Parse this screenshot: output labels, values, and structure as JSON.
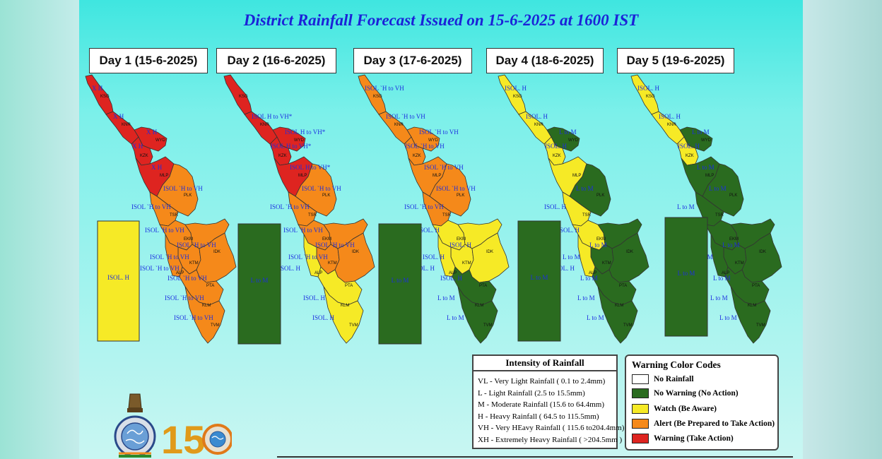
{
  "title": "District Rainfall Forecast Issued on  15-6-2025 at 1600 IST",
  "days": [
    {
      "label": "Day 1 (15-6-2025)",
      "rect_color": "#f6ea26",
      "rect_label": "ISOL. H"
    },
    {
      "label": "Day 2 (16-6-2025)",
      "rect_color": "#2a6b1f",
      "rect_label": "L to M"
    },
    {
      "label": "Day 3 (17-6-2025)",
      "rect_color": "#2a6b1f",
      "rect_label": "L to M"
    },
    {
      "label": "Day 4 (18-6-2025)",
      "rect_color": "#2a6b1f",
      "rect_label": "L to M"
    },
    {
      "label": "Day 5 (19-6-2025)",
      "rect_color": "#2a6b1f",
      "rect_label": "L to M"
    }
  ],
  "districts": [
    "KSG",
    "KNR",
    "WYD",
    "KZK",
    "MLP",
    "PLK",
    "TSR",
    "EKM",
    "IDK",
    "KTM",
    "ALP",
    "PTA",
    "KLM",
    "TVM"
  ],
  "colors": {
    "red": "#de2420",
    "orange": "#f5891a",
    "yellow": "#f6ea26",
    "green": "#2a6b1f",
    "white": "#ffffff"
  },
  "forecast": [
    [
      "red",
      "red",
      "red",
      "red",
      "red",
      "orange",
      "orange",
      "orange",
      "orange",
      "orange",
      "orange",
      "orange",
      "orange",
      "orange"
    ],
    [
      "red",
      "red",
      "red",
      "red",
      "red",
      "orange",
      "orange",
      "orange",
      "orange",
      "orange",
      "yellow",
      "orange",
      "yellow",
      "yellow"
    ],
    [
      "orange",
      "orange",
      "orange",
      "orange",
      "orange",
      "orange",
      "orange",
      "yellow",
      "yellow",
      "yellow",
      "yellow",
      "yellow",
      "green",
      "green"
    ],
    [
      "yellow",
      "yellow",
      "green",
      "yellow",
      "yellow",
      "green",
      "yellow",
      "yellow",
      "green",
      "green",
      "yellow",
      "green",
      "green",
      "green"
    ],
    [
      "yellow",
      "yellow",
      "green",
      "yellow",
      "green",
      "green",
      "green",
      "green",
      "green",
      "green",
      "green",
      "green",
      "green",
      "green"
    ]
  ],
  "map_labels": [
    [
      "X H",
      "X H",
      "X H",
      "X H",
      "X H",
      "ISOL `H to VH",
      "ISOL `H to VH",
      "ISOL `H to VH",
      "ISOL `H to VH",
      "ISOL `H to VH",
      "ISOL `H to VH",
      "ISOL `H to VH",
      "ISOL `H to VH",
      "ISOL `H to VH"
    ],
    [
      "",
      "ISOL H to VH*",
      "ISOL H to VH*",
      "ISOL H to VH*",
      "ISOL H to VH*",
      "ISOL `H to VH",
      "ISOL `H to VH",
      "ISOL `H to VH",
      "ISOL `H to VH",
      "ISOL `H to VH",
      "ISOL. H",
      "",
      "ISOL. H",
      "ISOL. H"
    ],
    [
      "ISOL `H to VH",
      "ISOL `H to VH",
      "ISOL `H to VH",
      "ISOL `H to VH",
      "ISOL `H to VH",
      "ISOL `H to VH",
      "ISOL `H to VH",
      "ISOL. H",
      "ISOL. H",
      "ISOL. H",
      "ISOL. H",
      "ISOL. H",
      "L to M",
      "L to M"
    ],
    [
      "ISOL. H",
      "ISOL. H",
      "L to M",
      "ISOL. H",
      "",
      "L to M",
      "ISOL. H",
      "ISOL. H",
      "L to M",
      "L to M",
      "ISOL. H",
      "L to M",
      "L to M",
      "L to M"
    ],
    [
      "ISOL. H",
      "ISOL. H",
      "L to M",
      "ISOL. H",
      "L to M",
      "L to M",
      "L to M",
      "L to M",
      "L to M",
      "L to M",
      "L to M",
      "L to M",
      "L to M",
      "L to M"
    ]
  ],
  "intensity": {
    "title": "Intensity of Rainfall",
    "items": [
      "VL - Very Light Rainfall ( 0.1 to 2.4mm)",
      "L  - Light Rainfall (2.5 to 15.5mm)",
      "M  - Moderate Rainfall (15.6 to 64.4mm)",
      "H  - Heavy Rainfall ( 64.5 to 115.5mm)",
      "VH - Very HEavy Rainfall ( 115.6 to204.4mm)",
      "XH - Extremely Heavy Rainfall ( >204.5mm )"
    ]
  },
  "warning_codes": {
    "title": "Warning Color Codes",
    "items": [
      {
        "label": "No Rainfall",
        "color": "#ffffff"
      },
      {
        "label": "No Warning (No Action)",
        "color": "#2a6b1f"
      },
      {
        "label": "Watch (Be Aware)",
        "color": "#f6ea26"
      },
      {
        "label": "Alert (Be Prepared to Take Action)",
        "color": "#f5891a"
      },
      {
        "label": "Warning (Take Action)",
        "color": "#de2420"
      }
    ]
  },
  "logos": {
    "imd_emblem": "imd-emblem-icon",
    "anniversary": "150"
  }
}
